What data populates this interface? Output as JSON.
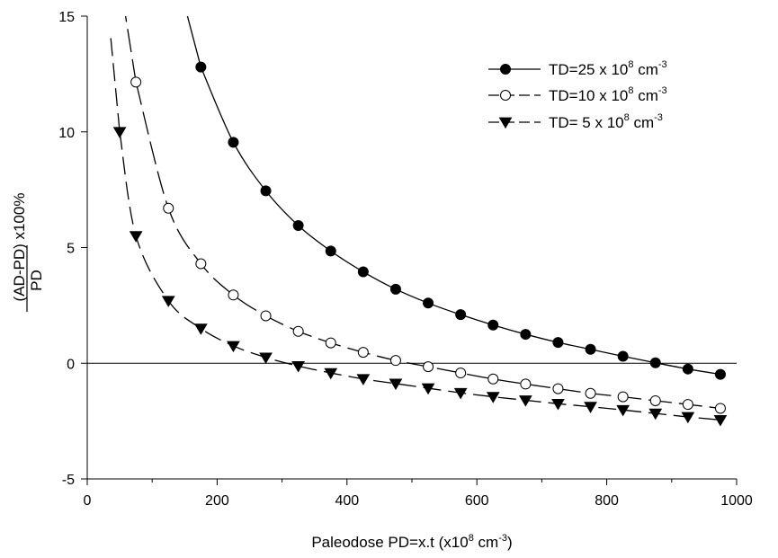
{
  "chart_data": {
    "type": "line",
    "xlabel": {
      "base": "Paleodose PD=x.t  (x10",
      "sup1": "8",
      "mid": " cm",
      "sup2": "-3",
      "end": ")"
    },
    "ylabel": {
      "numerator": "(AD-PD)",
      "suffix": " x100%",
      "denominator": "PD"
    },
    "xlim": [
      0,
      1000
    ],
    "ylim": [
      -5,
      15
    ],
    "xticks": [
      0,
      200,
      400,
      600,
      800,
      1000
    ],
    "yticks": [
      -5,
      0,
      5,
      10,
      15
    ],
    "minor_xticks": [
      100,
      300,
      500,
      700,
      900
    ],
    "zero_line": true,
    "legend_position": "top-right",
    "series": [
      {
        "name": "TD=25 x 10^8 cm^-3",
        "legend": {
          "pre": "TD=25 x 10",
          "sup1": "8",
          "mid": " cm",
          "sup2": "-3"
        },
        "marker": "filled-circle",
        "line_style": "solid",
        "x": [
          175,
          225,
          275,
          325,
          375,
          425,
          475,
          525,
          575,
          625,
          675,
          725,
          775,
          825,
          875,
          925,
          975
        ],
        "y": [
          12.8,
          9.55,
          7.45,
          5.95,
          4.85,
          3.95,
          3.2,
          2.6,
          2.1,
          1.65,
          1.25,
          0.9,
          0.6,
          0.3,
          0.02,
          -0.25,
          -0.48
        ]
      },
      {
        "name": "TD=10 x 10^8 cm^-3",
        "legend": {
          "pre": "TD=10 x 10",
          "sup1": "8",
          "mid": " cm",
          "sup2": "-3"
        },
        "marker": "open-circle",
        "line_style": "long-dash",
        "x": [
          75,
          125,
          175,
          225,
          275,
          325,
          375,
          425,
          475,
          525,
          575,
          625,
          675,
          725,
          775,
          825,
          875,
          925,
          975
        ],
        "y": [
          12.15,
          6.7,
          4.3,
          2.95,
          2.05,
          1.38,
          0.88,
          0.47,
          0.12,
          -0.15,
          -0.42,
          -0.68,
          -0.9,
          -1.1,
          -1.3,
          -1.45,
          -1.62,
          -1.78,
          -1.95
        ]
      },
      {
        "name": "TD= 5 x  10^8 cm^-3",
        "legend": {
          "pre": "TD= 5 x  10",
          "sup1": "8",
          "mid": " cm",
          "sup2": "-3"
        },
        "marker": "filled-triangle-down",
        "line_style": "dash",
        "x": [
          50,
          75,
          125,
          175,
          225,
          275,
          325,
          375,
          425,
          475,
          525,
          575,
          625,
          675,
          725,
          775,
          825,
          875,
          925,
          975
        ],
        "y": [
          10.0,
          5.5,
          2.7,
          1.5,
          0.75,
          0.25,
          -0.12,
          -0.42,
          -0.68,
          -0.88,
          -1.08,
          -1.28,
          -1.45,
          -1.6,
          -1.75,
          -1.88,
          -2.02,
          -2.17,
          -2.32,
          -2.45
        ]
      }
    ]
  }
}
